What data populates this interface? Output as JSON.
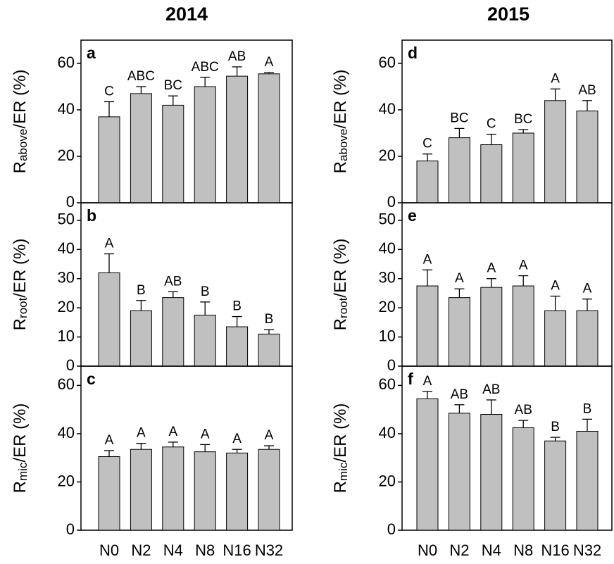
{
  "titles": [
    "2014",
    "2015"
  ],
  "chart_data": [
    {
      "type": "bar",
      "panel_label": "a",
      "ylabel": [
        "R",
        "above",
        "/ER (%)"
      ],
      "color": "#c0c0c0",
      "values": [
        37,
        47,
        42,
        50,
        54.5,
        55.5
      ],
      "errors": [
        6.5,
        3,
        4,
        4,
        4,
        0.5
      ],
      "letters": [
        "C",
        "ABC",
        "BC",
        "ABC",
        "AB",
        "A"
      ],
      "ylim": [
        0,
        70
      ],
      "yticks": [
        0,
        20,
        40,
        60
      ]
    },
    {
      "type": "bar",
      "panel_label": "b",
      "ylabel": [
        "R",
        "root",
        "/ER (%)"
      ],
      "color": "#c0c0c0",
      "values": [
        32,
        19,
        23.5,
        17.5,
        13.5,
        11
      ],
      "errors": [
        6.5,
        3.5,
        2,
        4.5,
        3.5,
        1.5
      ],
      "letters": [
        "A",
        "B",
        "AB",
        "B",
        "B",
        "B"
      ],
      "ylim": [
        0,
        56
      ],
      "yticks": [
        0,
        10,
        20,
        30,
        40,
        50
      ]
    },
    {
      "type": "bar",
      "panel_label": "c",
      "ylabel": [
        "R",
        "mic",
        "/ER (%)"
      ],
      "color": "#c0c0c0",
      "categories": [
        "N0",
        "N2",
        "N4",
        "N8",
        "N16",
        "N32"
      ],
      "values": [
        30.5,
        33.5,
        34.5,
        32.5,
        32,
        33.5
      ],
      "errors": [
        2.5,
        2.5,
        2,
        3,
        1.5,
        1.5
      ],
      "letters": [
        "A",
        "A",
        "A",
        "A",
        "A",
        "A"
      ],
      "ylim": [
        0,
        68
      ],
      "yticks": [
        0,
        20,
        40,
        60
      ]
    },
    {
      "type": "bar",
      "panel_label": "d",
      "ylabel": [
        "R",
        "above",
        "/ER (%)"
      ],
      "color": "#c0c0c0",
      "values": [
        18,
        28,
        25,
        30,
        44,
        39.5
      ],
      "errors": [
        3,
        4,
        4.5,
        1.5,
        5,
        4.5
      ],
      "letters": [
        "C",
        "BC",
        "C",
        "BC",
        "A",
        "AB"
      ],
      "ylim": [
        0,
        70
      ],
      "yticks": [
        0,
        20,
        40,
        60
      ]
    },
    {
      "type": "bar",
      "panel_label": "e",
      "ylabel": [
        "R",
        "root",
        "/ER (%)"
      ],
      "color": "#c0c0c0",
      "values": [
        27.5,
        23.5,
        27,
        27.5,
        19,
        19
      ],
      "errors": [
        5.5,
        3,
        3,
        3.5,
        5,
        4
      ],
      "letters": [
        "A",
        "A",
        "A",
        "A",
        "A",
        "A"
      ],
      "ylim": [
        0,
        56
      ],
      "yticks": [
        0,
        10,
        20,
        30,
        40,
        50
      ]
    },
    {
      "type": "bar",
      "panel_label": "f",
      "ylabel": [
        "R",
        "mic",
        "/ER (%)"
      ],
      "color": "#c0c0c0",
      "categories": [
        "N0",
        "N2",
        "N4",
        "N8",
        "N16",
        "N32"
      ],
      "values": [
        54.5,
        48.5,
        48,
        42.5,
        37,
        41
      ],
      "errors": [
        3,
        3.5,
        6,
        3,
        1.5,
        5
      ],
      "letters": [
        "A",
        "AB",
        "AB",
        "AB",
        "B",
        "B"
      ],
      "ylim": [
        0,
        68
      ],
      "yticks": [
        0,
        20,
        40,
        60
      ]
    }
  ]
}
